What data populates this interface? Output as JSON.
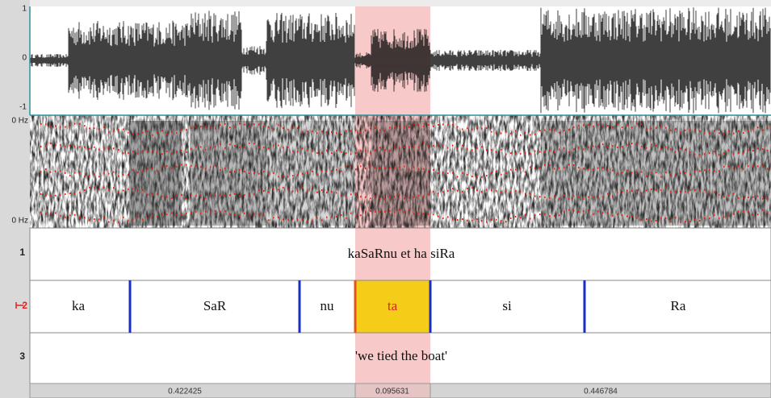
{
  "waveform": {
    "axis_labels": [
      "1",
      "0",
      "-1"
    ]
  },
  "spectrogram": {
    "axis_labels": [
      "0 Hz",
      "0 Hz"
    ]
  },
  "tiers": [
    {
      "number": "1",
      "text": "kaSaRnu et ha siRa"
    },
    {
      "number": "2",
      "intervals": [
        "ka",
        "SaR",
        "nu",
        "ta",
        "si",
        "Ra"
      ]
    },
    {
      "number": "3",
      "text": "'we tied the boat'"
    }
  ],
  "selection_durations": [
    "0.422425",
    "0.095631",
    "0.446784"
  ]
}
